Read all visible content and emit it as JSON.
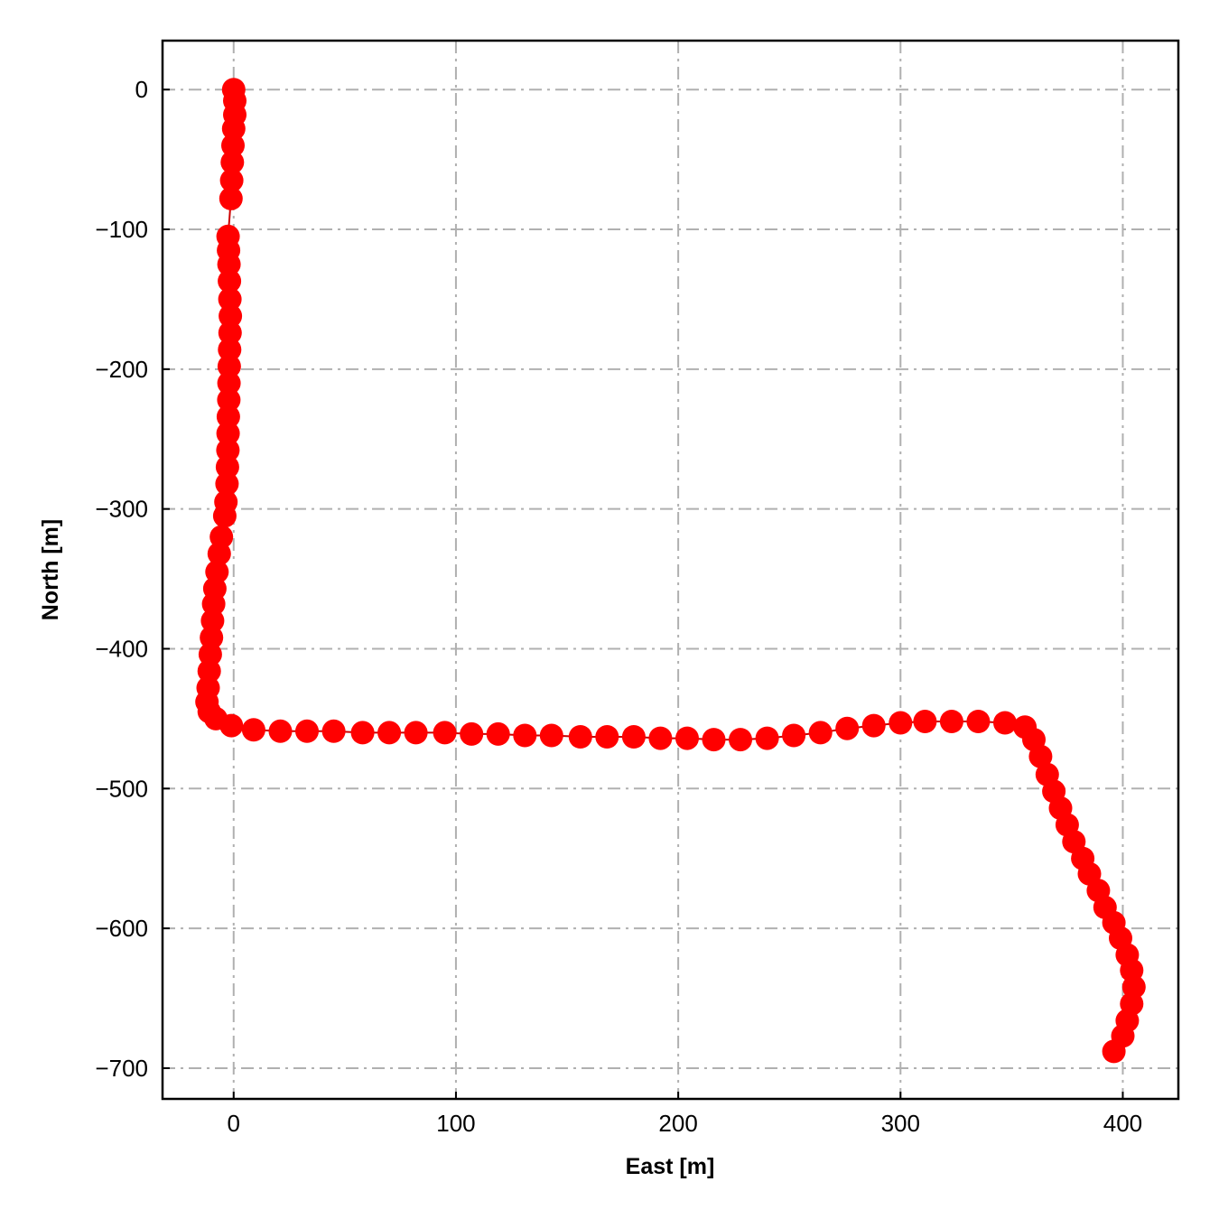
{
  "chart_data": {
    "type": "scatter",
    "title": "",
    "xlabel": "East [m]",
    "ylabel": "North [m]",
    "xlim": [
      -32,
      425
    ],
    "ylim": [
      -722,
      35
    ],
    "xticks": [
      0,
      100,
      200,
      300,
      400
    ],
    "yticks": [
      0,
      -100,
      -200,
      -300,
      -400,
      -500,
      -600,
      -700
    ],
    "xtick_labels": [
      "0",
      "100",
      "200",
      "300",
      "400"
    ],
    "ytick_labels": [
      "0",
      "−100",
      "−200",
      "−300",
      "−400",
      "−500",
      "−600",
      "−700"
    ],
    "grid": true,
    "marker_color": "#ff0000",
    "line_color": "#cc0000",
    "connected": true,
    "series": [
      {
        "x": [
          0,
          0.5,
          0.5,
          0,
          -0.3,
          -0.6,
          -0.9,
          -1.2,
          -2.5,
          -2.3,
          -2.1,
          -1.9,
          -1.7,
          -1.5,
          -1.6,
          -1.8,
          -2.0,
          -2.1,
          -2.2,
          -2.4,
          -2.5,
          -2.6,
          -2.8,
          -3.0,
          -3.5,
          -4.0,
          -5.5,
          -6.5,
          -7.5,
          -8.5,
          -9.0,
          -9.5,
          -10.0,
          -10.5,
          -11.0,
          -11.5,
          -12.0,
          -11.0,
          -8.0,
          -1,
          9,
          21,
          33,
          45,
          58,
          70,
          82,
          95,
          107,
          119,
          131,
          143,
          156,
          168,
          180,
          192,
          204,
          216,
          228,
          240,
          252,
          264,
          276,
          288,
          300,
          311,
          323,
          335,
          347,
          356,
          360,
          363,
          366,
          369,
          372,
          375,
          378,
          382,
          385,
          389,
          392,
          396,
          399,
          402,
          404,
          405,
          404,
          402,
          400,
          396
        ],
        "y": [
          0,
          -8,
          -18,
          -28,
          -40,
          -52,
          -65,
          -78,
          -105,
          -115,
          -125,
          -137,
          -150,
          -162,
          -174,
          -186,
          -198,
          -210,
          -222,
          -234,
          -246,
          -258,
          -270,
          -282,
          -295,
          -305,
          -320,
          -332,
          -345,
          -357,
          -368,
          -380,
          -392,
          -404,
          -416,
          -428,
          -438,
          -445,
          -450,
          -455,
          -458,
          -459,
          -459,
          -459,
          -460,
          -460,
          -460,
          -460,
          -461,
          -461,
          -462,
          -462,
          -463,
          -463,
          -463,
          -464,
          -464,
          -465,
          -465,
          -464,
          -462,
          -460,
          -457,
          -455,
          -453,
          -452,
          -452,
          -452,
          -453,
          -456,
          -465,
          -477,
          -490,
          -502,
          -514,
          -526,
          -538,
          -550,
          -561,
          -573,
          -585,
          -596,
          -607,
          -619,
          -630,
          -642,
          -654,
          -666,
          -677,
          -688
        ]
      }
    ]
  }
}
